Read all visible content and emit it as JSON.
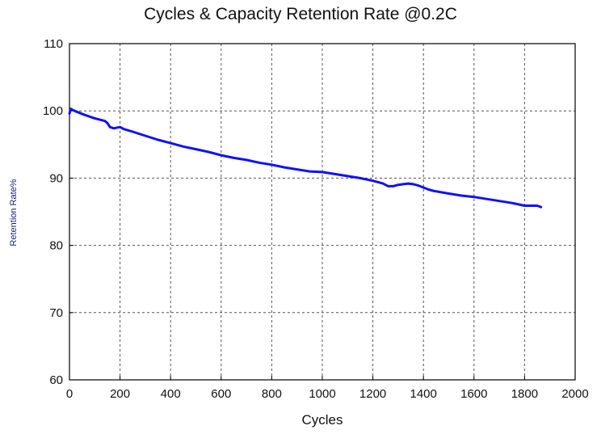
{
  "chart_data": {
    "type": "line",
    "title": "Cycles & Capacity Retention Rate @0.2C",
    "xlabel": "Cycles",
    "ylabel": "Retention Rate%",
    "xlim": [
      0,
      2000
    ],
    "ylim": [
      60,
      110
    ],
    "xticks": [
      0,
      200,
      400,
      600,
      800,
      1000,
      1200,
      1400,
      1600,
      1800,
      2000
    ],
    "yticks": [
      60,
      70,
      80,
      90,
      100,
      110
    ],
    "grid": true,
    "legend": "none",
    "line_color": "#1010ff",
    "series": [
      {
        "x": [
          0,
          5,
          20,
          60,
          100,
          140,
          150,
          160,
          175,
          200,
          215,
          250,
          300,
          350,
          400,
          450,
          500,
          550,
          600,
          650,
          700,
          750,
          800,
          850,
          900,
          950,
          1000,
          1050,
          1100,
          1150,
          1200,
          1240,
          1260,
          1280,
          1300,
          1320,
          1340,
          1360,
          1380,
          1400,
          1420,
          1440,
          1500,
          1550,
          1600,
          1650,
          1700,
          1750,
          1800,
          1850,
          1865
        ],
        "y": [
          99.6,
          100.3,
          100.0,
          99.4,
          98.9,
          98.5,
          98.2,
          97.6,
          97.4,
          97.6,
          97.3,
          96.9,
          96.3,
          95.7,
          95.2,
          94.7,
          94.3,
          93.9,
          93.4,
          93.0,
          92.7,
          92.3,
          92.0,
          91.6,
          91.3,
          91.0,
          90.9,
          90.6,
          90.3,
          90.0,
          89.6,
          89.2,
          88.8,
          88.8,
          89.0,
          89.1,
          89.2,
          89.1,
          88.9,
          88.6,
          88.3,
          88.1,
          87.7,
          87.4,
          87.2,
          86.9,
          86.6,
          86.3,
          85.9,
          85.9,
          85.7
        ]
      }
    ]
  }
}
